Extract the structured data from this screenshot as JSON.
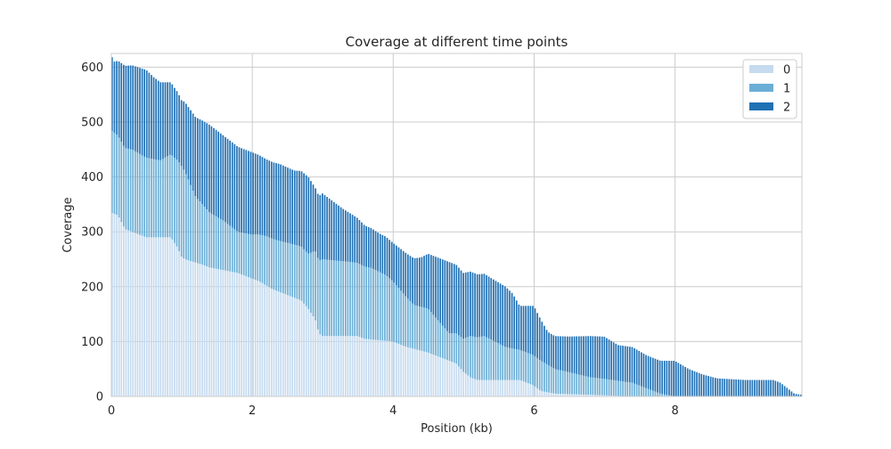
{
  "chart_data": {
    "type": "bar",
    "stacked": true,
    "title": "Coverage at different time points",
    "xlabel": "Position (kb)",
    "ylabel": "Coverage",
    "xlim": [
      0,
      9.8
    ],
    "ylim": [
      0,
      625
    ],
    "xticks": [
      0,
      2,
      4,
      6,
      8
    ],
    "yticks": [
      0,
      100,
      200,
      300,
      400,
      500,
      600
    ],
    "grid": true,
    "legend_position": "top-right",
    "bar_width_kb": 0.0328,
    "series": [
      {
        "name": "0",
        "color": "#c6dbef",
        "points": [
          [
            0.0,
            335
          ],
          [
            0.1,
            330
          ],
          [
            0.2,
            305
          ],
          [
            0.4,
            295
          ],
          [
            0.5,
            290
          ],
          [
            0.85,
            290
          ],
          [
            0.95,
            270
          ],
          [
            1.0,
            255
          ],
          [
            1.05,
            250
          ],
          [
            1.3,
            240
          ],
          [
            1.4,
            235
          ],
          [
            1.6,
            230
          ],
          [
            1.8,
            225
          ],
          [
            2.1,
            210
          ],
          [
            2.3,
            195
          ],
          [
            2.5,
            185
          ],
          [
            2.7,
            175
          ],
          [
            2.8,
            160
          ],
          [
            2.9,
            140
          ],
          [
            2.95,
            115
          ],
          [
            3.0,
            110
          ],
          [
            3.5,
            110
          ],
          [
            3.6,
            105
          ],
          [
            4.0,
            100
          ],
          [
            4.2,
            90
          ],
          [
            4.5,
            80
          ],
          [
            4.7,
            70
          ],
          [
            4.9,
            60
          ],
          [
            5.0,
            45
          ],
          [
            5.1,
            35
          ],
          [
            5.2,
            30
          ],
          [
            5.8,
            30
          ],
          [
            6.0,
            20
          ],
          [
            6.1,
            10
          ],
          [
            6.3,
            5
          ],
          [
            6.8,
            3
          ],
          [
            7.4,
            0
          ]
        ]
      },
      {
        "name": "1",
        "color": "#6baed6",
        "points": [
          [
            0.0,
            150
          ],
          [
            0.1,
            145
          ],
          [
            0.3,
            150
          ],
          [
            0.5,
            145
          ],
          [
            0.7,
            140
          ],
          [
            0.9,
            155
          ],
          [
            1.0,
            165
          ],
          [
            1.05,
            160
          ],
          [
            1.2,
            120
          ],
          [
            1.4,
            100
          ],
          [
            1.6,
            90
          ],
          [
            1.8,
            75
          ],
          [
            2.0,
            80
          ],
          [
            2.2,
            90
          ],
          [
            2.5,
            95
          ],
          [
            2.8,
            100
          ],
          [
            2.9,
            125
          ],
          [
            3.0,
            140
          ],
          [
            3.4,
            135
          ],
          [
            3.7,
            130
          ],
          [
            3.9,
            120
          ],
          [
            4.1,
            100
          ],
          [
            4.3,
            80
          ],
          [
            4.5,
            80
          ],
          [
            4.6,
            70
          ],
          [
            4.8,
            50
          ],
          [
            5.0,
            60
          ],
          [
            5.1,
            75
          ],
          [
            5.3,
            80
          ],
          [
            5.6,
            60
          ],
          [
            5.8,
            55
          ],
          [
            5.9,
            55
          ],
          [
            6.0,
            55
          ],
          [
            6.1,
            55
          ],
          [
            6.3,
            45
          ],
          [
            6.5,
            40
          ],
          [
            6.8,
            32
          ],
          [
            7.0,
            30
          ],
          [
            7.4,
            25
          ],
          [
            7.6,
            15
          ],
          [
            7.8,
            5
          ],
          [
            8.0,
            0
          ]
        ]
      },
      {
        "name": "2",
        "color": "#2171b5",
        "points": [
          [
            0.0,
            137
          ],
          [
            0.05,
            130
          ],
          [
            0.2,
            150
          ],
          [
            0.5,
            160
          ],
          [
            0.6,
            150
          ],
          [
            0.8,
            135
          ],
          [
            1.0,
            120
          ],
          [
            1.2,
            145
          ],
          [
            1.4,
            160
          ],
          [
            1.6,
            155
          ],
          [
            1.8,
            155
          ],
          [
            2.0,
            150
          ],
          [
            2.2,
            140
          ],
          [
            2.4,
            140
          ],
          [
            2.6,
            135
          ],
          [
            2.8,
            140
          ],
          [
            2.9,
            115
          ],
          [
            3.0,
            120
          ],
          [
            3.3,
            95
          ],
          [
            3.6,
            75
          ],
          [
            3.8,
            70
          ],
          [
            4.0,
            70
          ],
          [
            4.2,
            80
          ],
          [
            4.4,
            90
          ],
          [
            4.6,
            110
          ],
          [
            4.8,
            130
          ],
          [
            5.0,
            120
          ],
          [
            5.2,
            115
          ],
          [
            5.4,
            112
          ],
          [
            5.6,
            110
          ],
          [
            5.7,
            100
          ],
          [
            5.8,
            80
          ],
          [
            6.0,
            90
          ],
          [
            6.2,
            60
          ],
          [
            6.3,
            60
          ],
          [
            6.5,
            65
          ],
          [
            6.8,
            75
          ],
          [
            7.0,
            77
          ],
          [
            7.2,
            65
          ],
          [
            7.4,
            65
          ],
          [
            7.6,
            60
          ],
          [
            7.8,
            60
          ],
          [
            8.0,
            65
          ],
          [
            8.2,
            50
          ],
          [
            8.4,
            40
          ],
          [
            8.6,
            33
          ],
          [
            9.0,
            30
          ],
          [
            9.4,
            30
          ],
          [
            9.5,
            25
          ],
          [
            9.6,
            15
          ],
          [
            9.7,
            5
          ],
          [
            9.8,
            3
          ]
        ]
      }
    ]
  }
}
